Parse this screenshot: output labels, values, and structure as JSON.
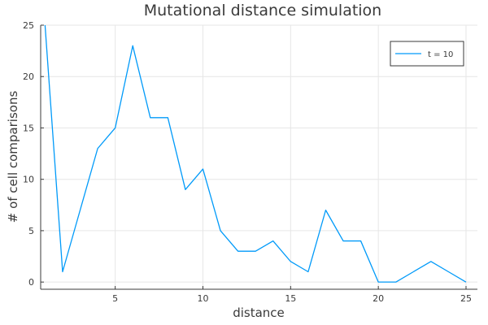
{
  "chart_data": {
    "type": "line",
    "title": "Mutational distance simulation",
    "xlabel": "distance",
    "ylabel": "# of cell comparisons",
    "xlim": [
      0.75,
      25.65
    ],
    "ylim": [
      -0.7,
      25.0
    ],
    "xticks": [
      5,
      10,
      15,
      20,
      25
    ],
    "yticks": [
      0,
      5,
      10,
      15,
      20,
      25
    ],
    "grid": true,
    "legend_position": "top-right",
    "series": [
      {
        "name": "t = 10",
        "color": "#009af9",
        "x": [
          1,
          2,
          3,
          4,
          5,
          6,
          7,
          8,
          9,
          10,
          11,
          12,
          13,
          14,
          15,
          16,
          17,
          18,
          19,
          20,
          21,
          22,
          23,
          24,
          25
        ],
        "y": [
          25,
          1,
          7,
          13,
          15,
          23,
          16,
          16,
          9,
          11,
          5,
          3,
          3,
          4,
          2,
          1,
          7,
          4,
          4,
          0,
          0,
          1,
          2,
          1,
          0
        ]
      }
    ]
  }
}
